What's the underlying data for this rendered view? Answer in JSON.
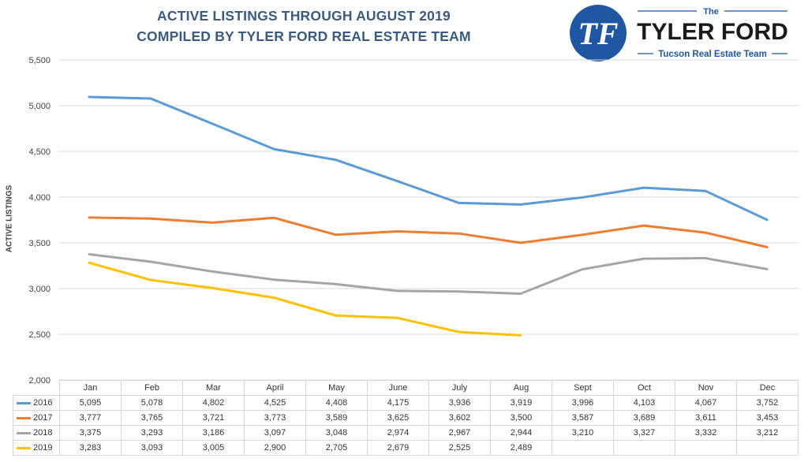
{
  "header": {
    "title_line1": "ACTIVE LISTINGS THROUGH AUGUST 2019",
    "title_line2": "COMPILED BY TYLER FORD REAL ESTATE TEAM"
  },
  "logo": {
    "monogram": "TF",
    "the": "The",
    "name": "TYLER FORD",
    "tagline": "Tucson Real Estate Team",
    "icon": "tf-monogram-circle-icon",
    "color": "#1f57a3"
  },
  "chart_data": {
    "type": "line",
    "title": "ACTIVE LISTINGS THROUGH AUGUST 2019",
    "subtitle": "COMPILED BY TYLER FORD REAL ESTATE TEAM",
    "xlabel": "",
    "ylabel": "ACTIVE LISTINGS",
    "ylim": [
      2000,
      5500
    ],
    "yticks": [
      2000,
      2500,
      3000,
      3500,
      4000,
      4500,
      5000,
      5500
    ],
    "ytick_labels": [
      "2,000",
      "2,500",
      "3,000",
      "3,500",
      "4,000",
      "4,500",
      "5,000",
      "5,500"
    ],
    "grid": true,
    "legend": "data table below chart",
    "categories": [
      "Jan",
      "Feb",
      "Mar",
      "April",
      "May",
      "June",
      "July",
      "Aug",
      "Sept",
      "Oct",
      "Nov",
      "Dec"
    ],
    "series": [
      {
        "name": "2016",
        "color": "#5b9bd5",
        "values": [
          5095,
          5078,
          4802,
          4525,
          4408,
          4175,
          3936,
          3919,
          3996,
          4103,
          4067,
          3752
        ],
        "labels": [
          "5,095",
          "5,078",
          "4,802",
          "4,525",
          "4,408",
          "4,175",
          "3,936",
          "3,919",
          "3,996",
          "4,103",
          "4,067",
          "3,752"
        ]
      },
      {
        "name": "2017",
        "color": "#ed7d31",
        "values": [
          3777,
          3765,
          3721,
          3773,
          3589,
          3625,
          3602,
          3500,
          3587,
          3689,
          3611,
          3453
        ],
        "labels": [
          "3,777",
          "3,765",
          "3,721",
          "3,773",
          "3,589",
          "3,625",
          "3,602",
          "3,500",
          "3,587",
          "3,689",
          "3,611",
          "3,453"
        ]
      },
      {
        "name": "2018",
        "color": "#a5a5a5",
        "values": [
          3375,
          3293,
          3186,
          3097,
          3048,
          2974,
          2967,
          2944,
          3210,
          3327,
          3332,
          3212
        ],
        "labels": [
          "3,375",
          "3,293",
          "3,186",
          "3,097",
          "3,048",
          "2,974",
          "2,967",
          "2,944",
          "3,210",
          "3,327",
          "3,332",
          "3,212"
        ]
      },
      {
        "name": "2019",
        "color": "#ffc000",
        "values": [
          3283,
          3093,
          3005,
          2900,
          2705,
          2679,
          2525,
          2489,
          null,
          null,
          null,
          null
        ],
        "labels": [
          "3,283",
          "3,093",
          "3,005",
          "2,900",
          "2,705",
          "2,679",
          "2,525",
          "2,489",
          "",
          "",
          "",
          ""
        ]
      }
    ]
  }
}
